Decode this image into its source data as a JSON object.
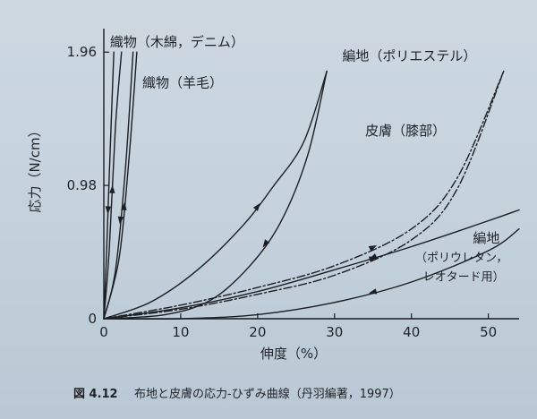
{
  "chart_data": {
    "type": "line",
    "title": "",
    "xlabel": "伸度（%）",
    "ylabel": "応力（N/cm）",
    "xlim": [
      0,
      54
    ],
    "ylim": [
      0,
      2.08
    ],
    "xticks": [
      0,
      10,
      20,
      30,
      40,
      50
    ],
    "xtick_labels": [
      "0",
      "10",
      "20",
      "30",
      "40",
      "50"
    ],
    "yticks": [
      0,
      0.98,
      1.96
    ],
    "ytick_labels": [
      "0",
      "0.98",
      "1.96"
    ],
    "grid": false,
    "legend": "none",
    "series": [
      {
        "name": "織物（木綿，デニム）",
        "style": "solid",
        "segments": [
          {
            "direction": "loading",
            "x": [
              0,
              0.7,
              1.5,
              2.3
            ],
            "y": [
              0,
              0.5,
              1.4,
              1.96
            ]
          },
          {
            "direction": "unloading",
            "x": [
              0,
              0.3,
              0.8,
              1.3
            ],
            "y": [
              0,
              0.4,
              1.2,
              1.96
            ]
          }
        ]
      },
      {
        "name": "織物（羊毛）",
        "style": "solid",
        "segments": [
          {
            "direction": "loading",
            "x": [
              0,
              2.0,
              3.3,
              4.3
            ],
            "y": [
              0,
              0.45,
              1.2,
              1.96
            ]
          },
          {
            "direction": "unloading",
            "x": [
              0,
              1.5,
              2.8,
              3.8
            ],
            "y": [
              0,
              0.35,
              1.1,
              1.96
            ]
          }
        ]
      },
      {
        "name": "編地（ポリエステル）",
        "style": "solid",
        "segments": [
          {
            "direction": "loading",
            "x": [
              0,
              6,
              12,
              18,
              22,
              26,
              29
            ],
            "y": [
              0,
              0.12,
              0.35,
              0.68,
              0.97,
              1.3,
              1.82
            ]
          },
          {
            "direction": "unloading",
            "x": [
              0,
              8,
              14,
              19,
              23,
              26.5,
              29
            ],
            "y": [
              0,
              0.03,
              0.14,
              0.39,
              0.71,
              1.2,
              1.82
            ]
          }
        ]
      },
      {
        "name": "皮膚（膝部）",
        "style": "dash-dot",
        "segments": [
          {
            "direction": "loading",
            "x": [
              0,
              10,
              20,
              30,
              40,
              46,
              52
            ],
            "y": [
              0,
              0.1,
              0.23,
              0.39,
              0.66,
              1.04,
              1.82
            ]
          },
          {
            "direction": "unloading",
            "x": [
              0,
              10,
              20,
              30,
              40,
              46,
              52
            ],
            "y": [
              0,
              0.07,
              0.18,
              0.32,
              0.58,
              0.96,
              1.82
            ]
          }
        ]
      },
      {
        "name": "編地（ポリウレタン，レオタード用）",
        "style": "solid",
        "segments": [
          {
            "direction": "loading",
            "x": [
              0,
              10,
              20,
              30,
              40,
              50,
              54
            ],
            "y": [
              0,
              0.08,
              0.2,
              0.36,
              0.53,
              0.72,
              0.8
            ]
          },
          {
            "direction": "unloading",
            "x": [
              0,
              10,
              20,
              30,
              40,
              50,
              54
            ],
            "y": [
              0,
              0,
              0.03,
              0.12,
              0.27,
              0.5,
              0.66
            ]
          }
        ]
      }
    ],
    "annotations": [
      {
        "text": "織物（木綿，デニム）",
        "x": 0.8,
        "y": 2.0
      },
      {
        "text": "織物（羊毛）",
        "x": 5.0,
        "y": 1.7
      },
      {
        "text": "編地（ポリエステル）",
        "x": 31.0,
        "y": 1.9
      },
      {
        "text": "皮膚（膝部）",
        "x": 34.0,
        "y": 1.35
      },
      {
        "text": "編地",
        "x": 48.0,
        "y": 0.56
      },
      {
        "text": "（ポリウレタン，",
        "x": 40.5,
        "y": 0.42
      },
      {
        "text": "レオタード用）",
        "x": 41.5,
        "y": 0.28
      }
    ]
  },
  "caption": {
    "number": "図 4.12",
    "text": "布地と皮膚の応力-ひずみ曲線（丹羽編著，1997）"
  }
}
